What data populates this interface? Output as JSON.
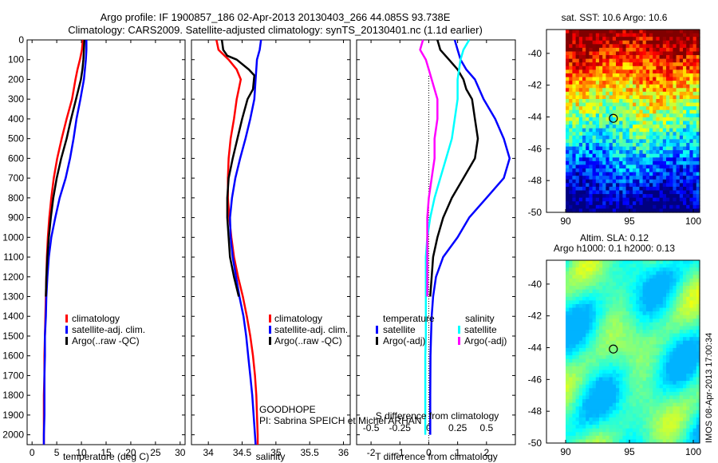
{
  "title": {
    "line1": "Argo profile: IF 1900857_186 02-Apr-2013 20130403_266 44.085S 93.738E",
    "line2": "Climatology: CARS2009. Satellite-adjusted climatology: synTS_20130401.nc (1.1d earlier)"
  },
  "footer": {
    "project": "GOODHOPE",
    "pi": "PI: Sabrina SPEICH et Michel ARHAN",
    "stamp": "IMOS 08-Apr-2013 17:00:34"
  },
  "colors": {
    "climatology": "#ff0000",
    "satellite": "#0000ff",
    "argo": "#000000",
    "satellite_sal": "#00ffff",
    "argo_sal": "#ff00ff"
  },
  "chart_data": [
    {
      "type": "line",
      "panel": "temperature",
      "xlabel": "temperature (deg C)",
      "ylabel": "",
      "xlim": [
        -1,
        31
      ],
      "ylim": [
        0,
        2050
      ],
      "y_reversed": true,
      "xticks": [
        "0",
        "5",
        "10",
        "15",
        "20",
        "25",
        "30"
      ],
      "yticks": [
        "0",
        "100",
        "200",
        "300",
        "400",
        "500",
        "600",
        "700",
        "800",
        "900",
        "1000",
        "1100",
        "1200",
        "1300",
        "1400",
        "1500",
        "1600",
        "1700",
        "1800",
        "1900",
        "2000"
      ],
      "legend": [
        "climatology",
        "satellite-adj. clim.",
        "Argo(..raw -QC)"
      ],
      "series": [
        {
          "name": "climatology",
          "color": "#ff0000",
          "points": [
            [
              10.3,
              0
            ],
            [
              10.1,
              50
            ],
            [
              9.7,
              100
            ],
            [
              9.2,
              150
            ],
            [
              8.8,
              200
            ],
            [
              8.1,
              300
            ],
            [
              7.0,
              400
            ],
            [
              6.0,
              500
            ],
            [
              5.1,
              600
            ],
            [
              4.4,
              700
            ],
            [
              3.9,
              800
            ],
            [
              3.5,
              900
            ],
            [
              3.2,
              1000
            ],
            [
              3.0,
              1100
            ],
            [
              2.9,
              1200
            ],
            [
              2.8,
              1300
            ],
            [
              2.7,
              1400
            ],
            [
              2.6,
              1500
            ],
            [
              2.5,
              1600
            ],
            [
              2.5,
              1700
            ],
            [
              2.4,
              1800
            ],
            [
              2.4,
              1900
            ],
            [
              2.4,
              2000
            ],
            [
              2.4,
              2050
            ]
          ]
        },
        {
          "name": "satellite-adj. clim.",
          "color": "#0000ff",
          "points": [
            [
              11.0,
              0
            ],
            [
              11.0,
              50
            ],
            [
              10.9,
              100
            ],
            [
              10.7,
              150
            ],
            [
              10.5,
              200
            ],
            [
              9.8,
              300
            ],
            [
              9.0,
              400
            ],
            [
              8.4,
              500
            ],
            [
              7.7,
              600
            ],
            [
              6.8,
              700
            ],
            [
              5.6,
              800
            ],
            [
              4.7,
              900
            ],
            [
              3.9,
              1000
            ],
            [
              3.4,
              1100
            ],
            [
              3.1,
              1200
            ],
            [
              2.9,
              1300
            ],
            [
              2.8,
              1400
            ],
            [
              2.6,
              1500
            ],
            [
              2.6,
              1600
            ],
            [
              2.5,
              1700
            ],
            [
              2.5,
              1800
            ],
            [
              2.5,
              1900
            ],
            [
              2.4,
              2000
            ],
            [
              2.4,
              2050
            ]
          ]
        },
        {
          "name": "Argo(..raw -QC)",
          "color": "#000000",
          "points": [
            [
              10.6,
              0
            ],
            [
              10.5,
              50
            ],
            [
              10.4,
              100
            ],
            [
              10.2,
              150
            ],
            [
              9.9,
              200
            ],
            [
              8.9,
              300
            ],
            [
              7.9,
              400
            ],
            [
              7.0,
              500
            ],
            [
              5.9,
              600
            ],
            [
              5.0,
              700
            ],
            [
              4.3,
              800
            ],
            [
              3.8,
              900
            ],
            [
              3.4,
              1000
            ],
            [
              3.1,
              1100
            ],
            [
              2.9,
              1200
            ],
            [
              2.8,
              1300
            ]
          ]
        }
      ]
    },
    {
      "type": "line",
      "panel": "salinity",
      "xlabel": "salinity",
      "xlim": [
        33.75,
        36.1
      ],
      "ylim": [
        0,
        2050
      ],
      "y_reversed": true,
      "xticks": [
        "34",
        "34.5",
        "35",
        "35.5",
        "36"
      ],
      "legend": [
        "climatology",
        "satellite-adj. clim.",
        "Argo(..raw -QC)"
      ],
      "series": [
        {
          "name": "climatology",
          "color": "#ff0000",
          "points": [
            [
              34.12,
              0
            ],
            [
              34.15,
              50
            ],
            [
              34.3,
              100
            ],
            [
              34.42,
              150
            ],
            [
              34.48,
              200
            ],
            [
              34.45,
              250
            ],
            [
              34.42,
              300
            ],
            [
              34.38,
              400
            ],
            [
              34.33,
              500
            ],
            [
              34.3,
              600
            ],
            [
              34.29,
              700
            ],
            [
              34.29,
              800
            ],
            [
              34.31,
              900
            ],
            [
              34.34,
              1000
            ],
            [
              34.38,
              1100
            ],
            [
              34.44,
              1200
            ],
            [
              34.51,
              1300
            ],
            [
              34.57,
              1400
            ],
            [
              34.62,
              1500
            ],
            [
              34.66,
              1600
            ],
            [
              34.69,
              1700
            ],
            [
              34.71,
              1800
            ],
            [
              34.72,
              1900
            ],
            [
              34.73,
              2000
            ],
            [
              34.73,
              2050
            ]
          ]
        },
        {
          "name": "satellite-adj. clim.",
          "color": "#0000ff",
          "points": [
            [
              34.78,
              0
            ],
            [
              34.76,
              50
            ],
            [
              34.72,
              100
            ],
            [
              34.7,
              200
            ],
            [
              34.68,
              300
            ],
            [
              34.62,
              400
            ],
            [
              34.55,
              500
            ],
            [
              34.47,
              600
            ],
            [
              34.4,
              700
            ],
            [
              34.35,
              800
            ],
            [
              34.32,
              900
            ],
            [
              34.33,
              1000
            ],
            [
              34.36,
              1100
            ],
            [
              34.41,
              1200
            ],
            [
              34.46,
              1300
            ],
            [
              34.52,
              1400
            ],
            [
              34.56,
              1500
            ],
            [
              34.59,
              1600
            ],
            [
              34.62,
              1700
            ],
            [
              34.65,
              1800
            ],
            [
              34.67,
              1900
            ],
            [
              34.69,
              2000
            ],
            [
              34.7,
              2050
            ]
          ]
        },
        {
          "name": "Argo(..raw -QC)",
          "color": "#000000",
          "points": [
            [
              34.2,
              0
            ],
            [
              34.22,
              50
            ],
            [
              34.28,
              80
            ],
            [
              34.42,
              100
            ],
            [
              34.6,
              150
            ],
            [
              34.68,
              180
            ],
            [
              34.66,
              250
            ],
            [
              34.58,
              300
            ],
            [
              34.5,
              400
            ],
            [
              34.43,
              500
            ],
            [
              34.36,
              600
            ],
            [
              34.3,
              700
            ],
            [
              34.28,
              800
            ],
            [
              34.28,
              900
            ],
            [
              34.3,
              1000
            ],
            [
              34.32,
              1100
            ],
            [
              34.38,
              1200
            ],
            [
              34.45,
              1300
            ]
          ]
        }
      ]
    },
    {
      "type": "line",
      "panel": "difference",
      "xlabel": "T difference from climatology",
      "xlabel_top": "S difference from climatology",
      "xlim": [
        -2.5,
        3.0
      ],
      "ylim": [
        0,
        2050
      ],
      "y_reversed": true,
      "xticks": [
        "-2",
        "-1",
        "0",
        "1",
        "2"
      ],
      "xticks_top": [
        "-0.5",
        "-0.25",
        "0",
        "0.25",
        "0.5"
      ],
      "legend_headers": [
        "temperature",
        "salinity"
      ],
      "legend": [
        "satellite",
        "Argo(-adj)",
        "satellite",
        "Argo(-adj)"
      ],
      "series": [
        {
          "name": "temperature satellite",
          "color": "#0000ff",
          "points": [
            [
              0.9,
              0
            ],
            [
              1.0,
              50
            ],
            [
              1.1,
              100
            ],
            [
              1.3,
              150
            ],
            [
              1.6,
              200
            ],
            [
              1.9,
              300
            ],
            [
              2.3,
              400
            ],
            [
              2.6,
              500
            ],
            [
              2.8,
              600
            ],
            [
              2.6,
              700
            ],
            [
              2.0,
              800
            ],
            [
              1.4,
              900
            ],
            [
              1.0,
              1000
            ],
            [
              0.5,
              1100
            ],
            [
              0.25,
              1200
            ],
            [
              0.15,
              1300
            ],
            [
              0.1,
              1400
            ],
            [
              0.08,
              1500
            ],
            [
              0.06,
              1600
            ],
            [
              0.05,
              1800
            ],
            [
              0.05,
              2000
            ]
          ]
        },
        {
          "name": "temperature Argo(-adj)",
          "color": "#000000",
          "points": [
            [
              0.3,
              0
            ],
            [
              0.4,
              50
            ],
            [
              0.7,
              100
            ],
            [
              1.0,
              150
            ],
            [
              1.2,
              200
            ],
            [
              1.3,
              250
            ],
            [
              1.5,
              300
            ],
            [
              1.6,
              400
            ],
            [
              1.7,
              500
            ],
            [
              1.6,
              600
            ],
            [
              1.2,
              700
            ],
            [
              0.8,
              800
            ],
            [
              0.5,
              900
            ],
            [
              0.3,
              1000
            ],
            [
              0.15,
              1100
            ],
            [
              0.1,
              1200
            ],
            [
              0.05,
              1300
            ]
          ]
        },
        {
          "name": "salinity satellite",
          "color": "#00ffff",
          "points": [
            [
              1.4,
              0
            ],
            [
              1.2,
              50
            ],
            [
              1.1,
              100
            ],
            [
              1.0,
              200
            ],
            [
              1.0,
              300
            ],
            [
              0.9,
              400
            ],
            [
              0.8,
              500
            ],
            [
              0.6,
              600
            ],
            [
              0.4,
              700
            ],
            [
              0.2,
              800
            ],
            [
              0.05,
              900
            ],
            [
              -0.05,
              1000
            ],
            [
              -0.1,
              1100
            ],
            [
              -0.1,
              1200
            ],
            [
              -0.1,
              1300
            ],
            [
              -0.1,
              1400
            ],
            [
              -0.1,
              1500
            ],
            [
              -0.12,
              1600
            ],
            [
              -0.12,
              1700
            ],
            [
              -0.12,
              1800
            ],
            [
              -0.12,
              1900
            ],
            [
              -0.12,
              2000
            ]
          ]
        },
        {
          "name": "salinity Argo(-adj)",
          "color": "#ff00ff",
          "points": [
            [
              -0.2,
              0
            ],
            [
              -0.3,
              50
            ],
            [
              -0.1,
              100
            ],
            [
              0.0,
              150
            ],
            [
              0.1,
              200
            ],
            [
              0.3,
              300
            ],
            [
              0.3,
              400
            ],
            [
              0.2,
              500
            ],
            [
              0.2,
              600
            ],
            [
              0.1,
              700
            ],
            [
              0.0,
              800
            ],
            [
              -0.05,
              900
            ],
            [
              -0.05,
              1000
            ],
            [
              -0.05,
              1100
            ],
            [
              -0.05,
              1200
            ],
            [
              -0.05,
              1300
            ]
          ]
        }
      ]
    },
    {
      "type": "heatmap",
      "panel": "sst_map",
      "title": "sat. SST: 10.6  Argo: 10.6",
      "xlim": [
        88.5,
        100.5
      ],
      "ylim": [
        -50,
        -38.5
      ],
      "xticks": [
        "90",
        "95",
        "100"
      ],
      "yticks": [
        "-40",
        "-42",
        "-44",
        "-46",
        "-48",
        "-50"
      ],
      "marker": [
        93.738,
        -44.085
      ]
    },
    {
      "type": "heatmap",
      "panel": "sla_map",
      "title_line1": "Altim. SLA: 0.12",
      "title_line2": "Argo h1000: 0.1 h2000: 0.13",
      "xlim": [
        88.5,
        100.5
      ],
      "ylim": [
        -50,
        -38.5
      ],
      "xticks": [
        "90",
        "95",
        "100"
      ],
      "yticks": [
        "-40",
        "-42",
        "-44",
        "-46",
        "-48",
        "-50"
      ],
      "marker": [
        93.738,
        -44.085
      ]
    }
  ]
}
